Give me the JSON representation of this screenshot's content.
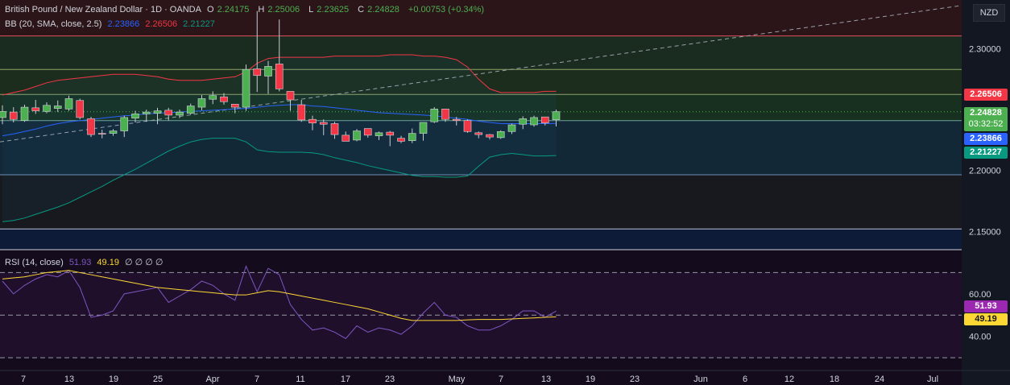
{
  "header": {
    "symbol": "British Pound / New Zealand Dollar · 1D · OANDA",
    "open_label": "O",
    "open": "2.24175",
    "high_label": "H",
    "high": "2.25006",
    "low_label": "L",
    "low": "2.23625",
    "close_label": "C",
    "close": "2.24828",
    "change": "+0.00753 (+0.34%)"
  },
  "bb_legend": {
    "label": "BB (20, SMA, close, 2.5)",
    "basis": "2.23866",
    "upper": "2.26506",
    "lower": "2.21227"
  },
  "rsi_legend": {
    "label": "RSI (14, close)",
    "rsi": "51.93",
    "ma": "49.19",
    "extra": "∅ ∅ ∅ ∅"
  },
  "currency": "NZD",
  "price_axis": {
    "ticks": [
      "2.30000",
      "2.20000",
      "2.15000"
    ]
  },
  "price_tags": {
    "upper": "2.26506",
    "close": "2.24828",
    "countdown": "03:32:52",
    "basis": "2.23866",
    "lower": "2.21227"
  },
  "rsi_axis": {
    "ticks": [
      "60.00",
      "40.00"
    ],
    "rsi_tag": "51.93",
    "ma_tag": "49.19"
  },
  "time_axis": [
    "7",
    "13",
    "19",
    "25",
    "Apr",
    "7",
    "11",
    "17",
    "23",
    "May",
    "7",
    "13",
    "19",
    "23",
    "Jun",
    "6",
    "12",
    "18",
    "24",
    "Jul"
  ],
  "colors": {
    "up": "#4caf50",
    "down": "#f23645",
    "bb_basis": "#2962ff",
    "bb_upper": "#f23645",
    "bb_lower": "#089981",
    "rsi": "#7e57c2",
    "rsi_ma": "#fdd835"
  },
  "chart_data": {
    "type": "candlestick",
    "ylim": [
      2.135,
      2.34
    ],
    "candles": [
      {
        "o": 2.2435,
        "h": 2.2535,
        "l": 2.238,
        "c": 2.2485
      },
      {
        "o": 2.248,
        "h": 2.252,
        "l": 2.2395,
        "c": 2.242
      },
      {
        "o": 2.241,
        "h": 2.254,
        "l": 2.24,
        "c": 2.252
      },
      {
        "o": 2.2515,
        "h": 2.258,
        "l": 2.2465,
        "c": 2.249
      },
      {
        "o": 2.2485,
        "h": 2.256,
        "l": 2.247,
        "c": 2.2535
      },
      {
        "o": 2.251,
        "h": 2.2575,
        "l": 2.248,
        "c": 2.253
      },
      {
        "o": 2.2505,
        "h": 2.2615,
        "l": 2.249,
        "c": 2.259
      },
      {
        "o": 2.2575,
        "h": 2.259,
        "l": 2.242,
        "c": 2.2435
      },
      {
        "o": 2.2425,
        "h": 2.244,
        "l": 2.2275,
        "c": 2.2295
      },
      {
        "o": 2.2305,
        "h": 2.2335,
        "l": 2.2265,
        "c": 2.23
      },
      {
        "o": 2.2305,
        "h": 2.234,
        "l": 2.2285,
        "c": 2.2325
      },
      {
        "o": 2.2325,
        "h": 2.245,
        "l": 2.2275,
        "c": 2.2435
      },
      {
        "o": 2.243,
        "h": 2.249,
        "l": 2.2395,
        "c": 2.2465
      },
      {
        "o": 2.2465,
        "h": 2.25,
        "l": 2.24,
        "c": 2.248
      },
      {
        "o": 2.247,
        "h": 2.2515,
        "l": 2.238,
        "c": 2.249
      },
      {
        "o": 2.2495,
        "h": 2.2515,
        "l": 2.241,
        "c": 2.2455
      },
      {
        "o": 2.2455,
        "h": 2.25,
        "l": 2.243,
        "c": 2.248
      },
      {
        "o": 2.247,
        "h": 2.255,
        "l": 2.246,
        "c": 2.253
      },
      {
        "o": 2.252,
        "h": 2.262,
        "l": 2.2495,
        "c": 2.259
      },
      {
        "o": 2.2585,
        "h": 2.265,
        "l": 2.2545,
        "c": 2.2615
      },
      {
        "o": 2.2605,
        "h": 2.2635,
        "l": 2.254,
        "c": 2.2565
      },
      {
        "o": 2.2545,
        "h": 2.2545,
        "l": 2.247,
        "c": 2.252
      },
      {
        "o": 2.252,
        "h": 2.287,
        "l": 2.249,
        "c": 2.283
      },
      {
        "o": 2.2835,
        "h": 2.331,
        "l": 2.2645,
        "c": 2.278
      },
      {
        "o": 2.2775,
        "h": 2.29,
        "l": 2.263,
        "c": 2.2855
      },
      {
        "o": 2.2875,
        "h": 2.324,
        "l": 2.265,
        "c": 2.267
      },
      {
        "o": 2.265,
        "h": 2.265,
        "l": 2.249,
        "c": 2.258
      },
      {
        "o": 2.254,
        "h": 2.258,
        "l": 2.24,
        "c": 2.2415
      },
      {
        "o": 2.242,
        "h": 2.245,
        "l": 2.233,
        "c": 2.239
      },
      {
        "o": 2.2395,
        "h": 2.242,
        "l": 2.229,
        "c": 2.238
      },
      {
        "o": 2.2385,
        "h": 2.24,
        "l": 2.226,
        "c": 2.2295
      },
      {
        "o": 2.229,
        "h": 2.232,
        "l": 2.224,
        "c": 2.224
      },
      {
        "o": 2.225,
        "h": 2.234,
        "l": 2.224,
        "c": 2.2325
      },
      {
        "o": 2.2345,
        "h": 2.2345,
        "l": 2.227,
        "c": 2.229
      },
      {
        "o": 2.2285,
        "h": 2.232,
        "l": 2.225,
        "c": 2.231
      },
      {
        "o": 2.2315,
        "h": 2.2325,
        "l": 2.22,
        "c": 2.229
      },
      {
        "o": 2.2265,
        "h": 2.2285,
        "l": 2.2225,
        "c": 2.224
      },
      {
        "o": 2.2245,
        "h": 2.2345,
        "l": 2.2225,
        "c": 2.2305
      },
      {
        "o": 2.2305,
        "h": 2.2375,
        "l": 2.2245,
        "c": 2.2395
      },
      {
        "o": 2.24,
        "h": 2.252,
        "l": 2.239,
        "c": 2.2505
      },
      {
        "o": 2.2505,
        "h": 2.2505,
        "l": 2.24,
        "c": 2.242
      },
      {
        "o": 2.242,
        "h": 2.244,
        "l": 2.237,
        "c": 2.241
      },
      {
        "o": 2.241,
        "h": 2.242,
        "l": 2.231,
        "c": 2.232
      },
      {
        "o": 2.231,
        "h": 2.232,
        "l": 2.2265,
        "c": 2.2295
      },
      {
        "o": 2.2295,
        "h": 2.23,
        "l": 2.2255,
        "c": 2.2275
      },
      {
        "o": 2.227,
        "h": 2.233,
        "l": 2.226,
        "c": 2.232
      },
      {
        "o": 2.232,
        "h": 2.2385,
        "l": 2.23,
        "c": 2.2375
      },
      {
        "o": 2.238,
        "h": 2.2445,
        "l": 2.234,
        "c": 2.2425
      },
      {
        "o": 2.2375,
        "h": 2.245,
        "l": 2.236,
        "c": 2.2435
      },
      {
        "o": 2.244,
        "h": 2.244,
        "l": 2.237,
        "c": 2.239
      },
      {
        "o": 2.2417,
        "h": 2.25,
        "l": 2.2362,
        "c": 2.2483
      }
    ],
    "bb_upper": [
      2.262,
      2.264,
      2.266,
      2.269,
      2.272,
      2.274,
      2.275,
      2.276,
      2.277,
      2.278,
      2.279,
      2.279,
      2.279,
      2.278,
      2.277,
      2.275,
      2.274,
      2.274,
      2.274,
      2.275,
      2.276,
      2.277,
      2.281,
      2.288,
      2.292,
      2.293,
      2.293,
      2.293,
      2.293,
      2.293,
      2.294,
      2.294,
      2.294,
      2.294,
      2.294,
      2.295,
      2.295,
      2.295,
      2.294,
      2.294,
      2.293,
      2.291,
      2.285,
      2.275,
      2.267,
      2.264,
      2.264,
      2.264,
      2.264,
      2.265,
      2.265
    ],
    "bb_basis": [
      2.2285,
      2.23,
      2.232,
      2.234,
      2.2365,
      2.2385,
      2.24,
      2.241,
      2.242,
      2.243,
      2.244,
      2.245,
      2.2455,
      2.2465,
      2.247,
      2.2475,
      2.248,
      2.2485,
      2.249,
      2.2495,
      2.25,
      2.2505,
      2.251,
      2.252,
      2.253,
      2.2535,
      2.254,
      2.254,
      2.253,
      2.2525,
      2.2515,
      2.2505,
      2.2495,
      2.2485,
      2.2475,
      2.247,
      2.2465,
      2.246,
      2.2455,
      2.245,
      2.244,
      2.243,
      2.242,
      2.2405,
      2.2395,
      2.2385,
      2.2385,
      2.2385,
      2.2385,
      2.2385,
      2.2387
    ],
    "bb_lower": [
      2.158,
      2.159,
      2.161,
      2.164,
      2.167,
      2.17,
      2.1735,
      2.178,
      2.1825,
      2.187,
      2.192,
      2.1965,
      2.201,
      2.206,
      2.211,
      2.216,
      2.22,
      2.2235,
      2.2255,
      2.2265,
      2.2265,
      2.2265,
      2.2235,
      2.217,
      2.2155,
      2.215,
      2.215,
      2.215,
      2.2145,
      2.213,
      2.2105,
      2.2085,
      2.2065,
      2.204,
      2.202,
      2.2,
      2.198,
      2.196,
      2.195,
      2.195,
      2.1945,
      2.1945,
      2.1955,
      2.2035,
      2.211,
      2.213,
      2.214,
      2.213,
      2.212,
      2.212,
      2.2123
    ],
    "rsi": [
      66,
      60,
      64,
      67,
      69,
      68,
      71,
      63,
      49,
      50,
      52,
      60,
      61,
      62,
      63,
      56,
      59,
      62,
      66,
      64,
      60,
      57,
      73,
      61,
      72,
      69,
      55,
      48,
      43,
      44,
      42,
      39,
      45,
      42,
      44,
      43,
      41,
      45,
      51,
      56,
      50,
      49,
      45,
      43,
      43,
      45,
      48,
      52,
      52,
      49,
      51.93
    ],
    "rsi_ma": [
      67,
      67.5,
      68,
      69,
      70,
      70.5,
      71,
      70,
      69,
      68,
      67,
      66,
      65,
      64,
      63,
      62.5,
      62,
      61.5,
      61,
      60.5,
      60,
      59.5,
      59.5,
      60.5,
      61.5,
      61,
      60,
      59,
      58,
      57,
      56,
      55,
      54,
      53,
      51.5,
      50,
      48.5,
      47.5,
      47.5,
      47.5,
      47.5,
      47.5,
      47.8,
      48,
      48,
      48,
      48.2,
      48.5,
      48.7,
      49,
      49.19
    ],
    "rsi_ylim": [
      24,
      80
    ],
    "hlines": [
      2.3105,
      2.283,
      2.2625,
      2.241,
      2.1965,
      2.152
    ]
  }
}
